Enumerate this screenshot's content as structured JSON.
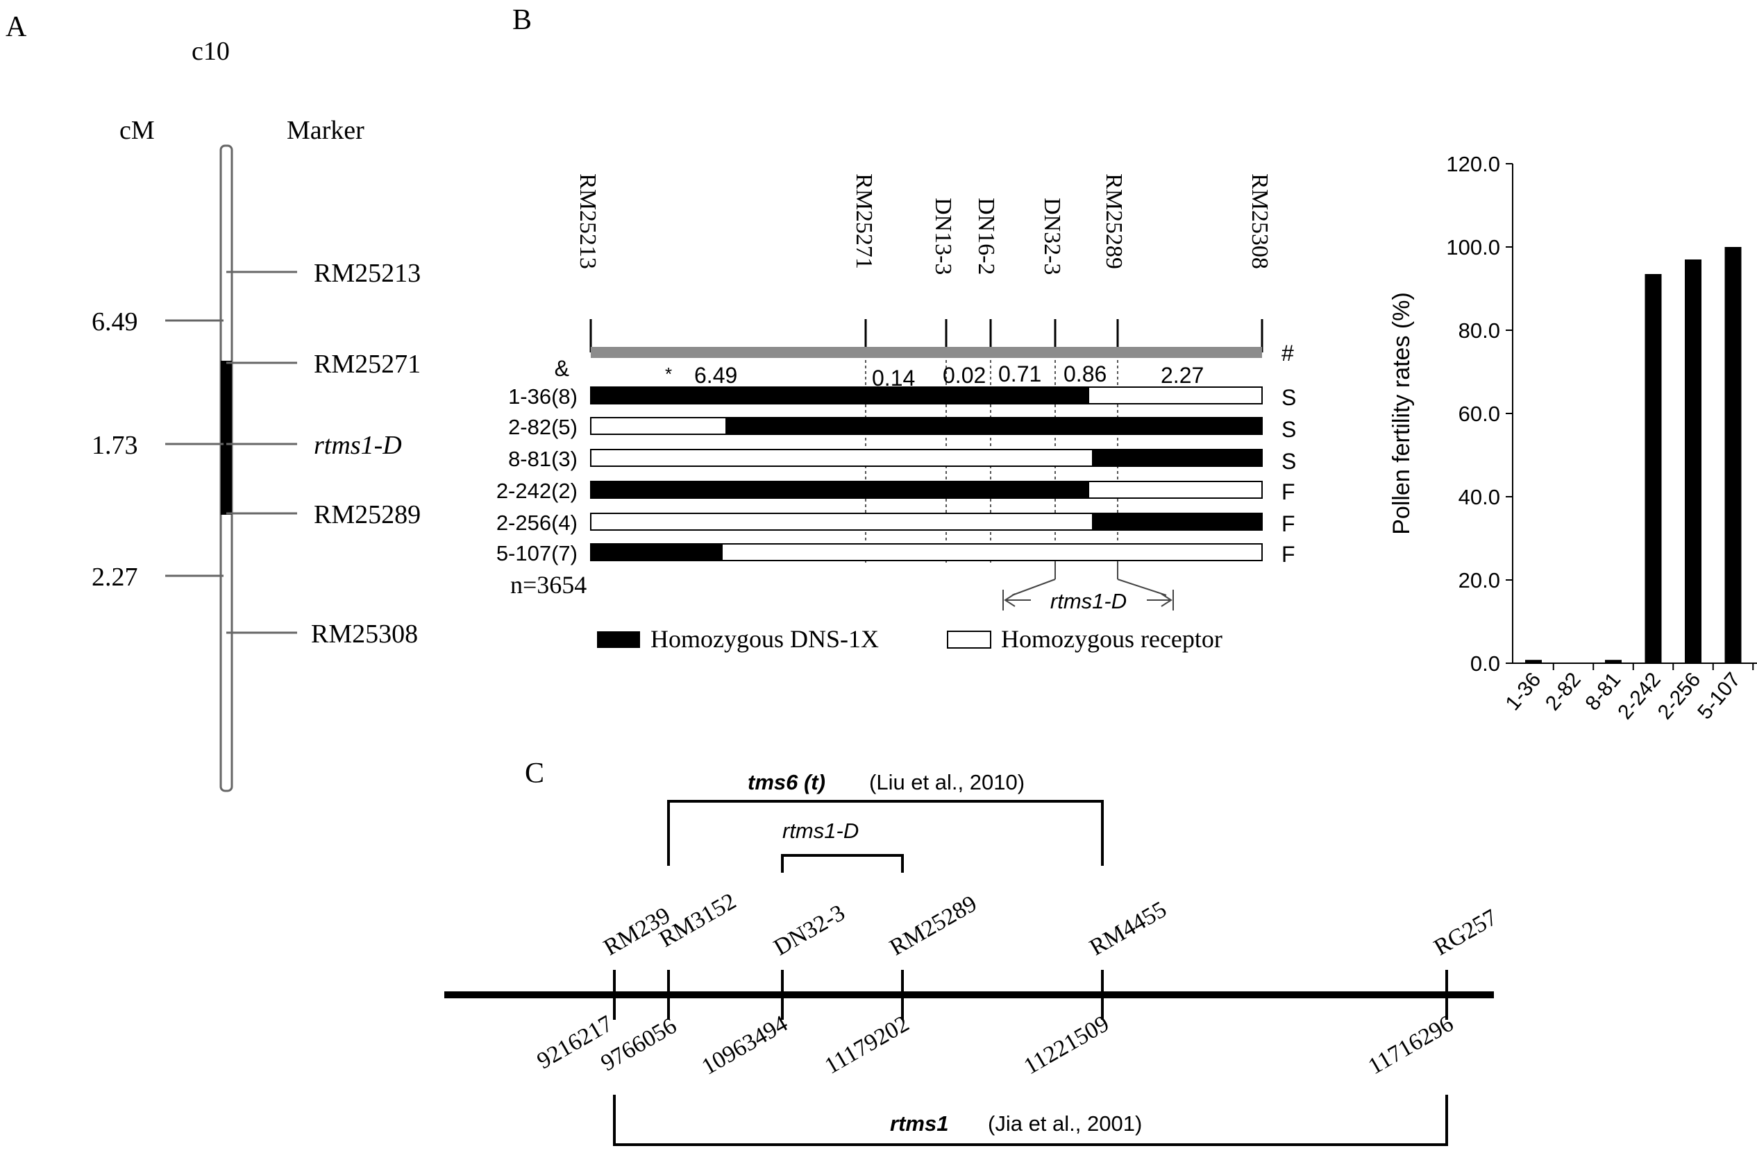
{
  "panels": {
    "a": "A",
    "b": "B",
    "c": "C"
  },
  "panel_a": {
    "chromosome": "c10",
    "cm_header": "cM",
    "marker_header": "Marker",
    "distances": [
      "6.49",
      "1.73",
      "2.27"
    ],
    "markers": [
      "RM25213",
      "RM25271",
      "rtms1-D",
      "RM25289",
      "RM25308"
    ]
  },
  "panel_b": {
    "markers": [
      "RM25213",
      "RM25271",
      "DN13-3",
      "DN16-2",
      "DN32-3",
      "RM25289",
      "RM25308"
    ],
    "amp_symbol": "&",
    "hash_symbol": "#",
    "star_symbol": "*",
    "intervals": [
      "6.49",
      "0.14",
      "0.02",
      "0.71",
      "0.86",
      "2.27"
    ],
    "rows": [
      {
        "label": "1-36(8)",
        "phenotype": "S"
      },
      {
        "label": "2-82(5)",
        "phenotype": "S"
      },
      {
        "label": "8-81(3)",
        "phenotype": "S"
      },
      {
        "label": "2-242(2)",
        "phenotype": "F"
      },
      {
        "label": "2-256(4)",
        "phenotype": "F"
      },
      {
        "label": "5-107(7)",
        "phenotype": "F"
      }
    ],
    "population": "n=3654",
    "locus": "rtms1-D",
    "legend_black": "Homozygous DNS-1X",
    "legend_white": "Homozygous receptor"
  },
  "chart_data": {
    "type": "bar",
    "title": "",
    "xlabel": "",
    "ylabel": "Pollen fertility rates (%)",
    "categories": [
      "1-36",
      "2-82",
      "8-81",
      "2-242",
      "2-256",
      "5-107"
    ],
    "values": [
      0.8,
      0.0,
      0.8,
      93.5,
      97.0,
      100.0
    ],
    "ylim": [
      0,
      120
    ],
    "yticks": [
      "0.0",
      "20.0",
      "40.0",
      "60.0",
      "80.0",
      "100.0",
      "120.0"
    ],
    "ytick_values": [
      0,
      20,
      40,
      60,
      80,
      100,
      120
    ],
    "grid": false
  },
  "panel_c": {
    "tms6_name": "tms6 (t)",
    "tms6_ref": "(Liu et al., 2010)",
    "rtms1d": "rtms1-D",
    "rtms1_name": "rtms1",
    "rtms1_ref": "(Jia et al., 2001)",
    "markers": [
      "RM239",
      "RM3152",
      "DN32-3",
      "RM25289",
      "RM4455",
      "RG257"
    ],
    "positions": [
      "9216217",
      "9766056",
      "10963494",
      "11179202",
      "11221509",
      "11716296"
    ]
  },
  "colors": {
    "ink": "#000000",
    "gray_bar": "#8c8c8c",
    "line": "#666666",
    "dotted": "#555555"
  }
}
